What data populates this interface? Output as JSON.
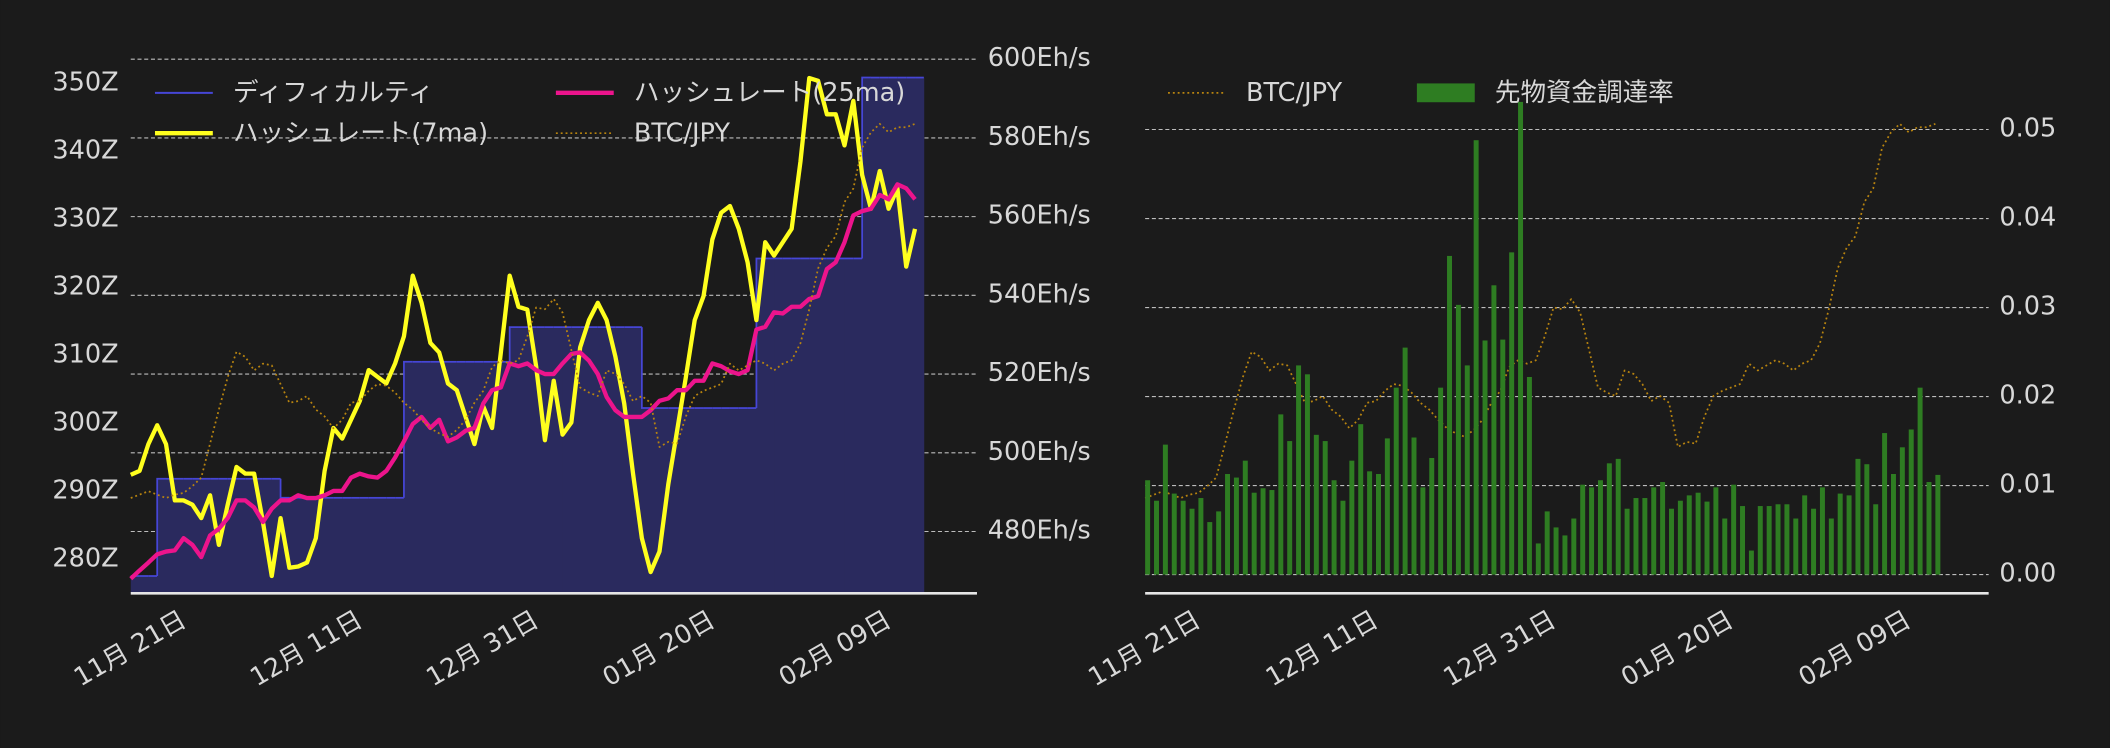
{
  "chart_data": [
    {
      "type": "line",
      "categories": [
        "11月 21日",
        null,
        null,
        null,
        null,
        null,
        null,
        null,
        null,
        null,
        null,
        null,
        null,
        null,
        null,
        null,
        null,
        null,
        null,
        null,
        "12月 11日",
        null,
        null,
        null,
        null,
        null,
        null,
        null,
        null,
        null,
        null,
        null,
        null,
        null,
        null,
        null,
        null,
        null,
        null,
        null,
        "12月 31日",
        null,
        null,
        null,
        null,
        null,
        null,
        null,
        null,
        null,
        null,
        null,
        null,
        null,
        null,
        null,
        null,
        null,
        null,
        null,
        "01月 20日",
        null,
        null,
        null,
        null,
        null,
        null,
        null,
        null,
        null,
        null,
        null,
        null,
        null,
        null,
        null,
        null,
        null,
        null,
        null,
        "02月 09日",
        null,
        null,
        null,
        null,
        null,
        null,
        null,
        null,
        null
      ],
      "ylim": [
        275.06,
        353.6
      ],
      "yticks": [
        {
          "value": 280,
          "label": "280Z"
        },
        {
          "value": 290,
          "label": "290Z"
        },
        {
          "value": 300,
          "label": "300Z"
        },
        {
          "value": 310,
          "label": "310Z"
        },
        {
          "value": 320,
          "label": "320Z"
        },
        {
          "value": 330,
          "label": "330Z"
        },
        {
          "value": 340,
          "label": "340Z"
        },
        {
          "value": 350,
          "label": "350Z"
        }
      ],
      "y2lim": [
        464.3,
        600
      ],
      "y2ticks": [
        {
          "value": 480,
          "label": "480Eh/s"
        },
        {
          "value": 500,
          "label": "500Eh/s"
        },
        {
          "value": 520,
          "label": "520Eh/s"
        },
        {
          "value": 540,
          "label": "540Eh/s"
        },
        {
          "value": 560,
          "label": "560Eh/s"
        },
        {
          "value": 580,
          "label": "580Eh/s"
        },
        {
          "value": 600,
          "label": "600Eh/s"
        }
      ],
      "y3lim": [
        4940000,
        8080000
      ],
      "grid": "y2",
      "legend": {
        "loc": "upper left",
        "ncol": 2
      },
      "series": [
        {
          "name": "ディフィカルティ",
          "style": "step-area",
          "color": "#4646d6",
          "fill": "#2a2a5e",
          "axis": "y",
          "values": [
            277.6,
            277.6,
            277.6,
            291.9,
            291.9,
            291.9,
            291.9,
            291.9,
            291.9,
            291.9,
            291.9,
            291.9,
            291.9,
            291.9,
            291.9,
            291.9,
            291.9,
            289.1,
            289.1,
            289.1,
            289.1,
            289.1,
            289.1,
            289.1,
            289.1,
            289.1,
            289.1,
            289.1,
            289.1,
            289.1,
            289.1,
            309.1,
            309.1,
            309.1,
            309.1,
            309.1,
            309.1,
            309.1,
            309.1,
            309.1,
            309.1,
            309.1,
            309.1,
            314.2,
            314.2,
            314.2,
            314.2,
            314.2,
            314.2,
            314.2,
            314.2,
            314.2,
            314.2,
            314.2,
            314.2,
            314.2,
            314.2,
            314.2,
            302.3,
            302.3,
            302.3,
            302.3,
            302.3,
            302.3,
            302.3,
            302.3,
            302.3,
            302.3,
            302.3,
            302.3,
            302.3,
            324.3,
            324.3,
            324.3,
            324.3,
            324.3,
            324.3,
            324.3,
            324.3,
            324.3,
            324.3,
            324.3,
            324.3,
            350.9,
            350.9,
            350.9,
            350.9,
            350.9,
            350.9,
            350.9
          ]
        },
        {
          "name": "ハッシュレート(7ma)",
          "color": "#ffff1e",
          "axis": "y2",
          "values": [
            494.4,
            495.4,
            502.2,
            507.0,
            502.2,
            487.9,
            487.9,
            486.8,
            483.4,
            489.2,
            476.6,
            486.8,
            496.4,
            494.7,
            494.7,
            482.4,
            468.7,
            483.4,
            470.8,
            471.1,
            472.1,
            478.3,
            495.4,
            506.3,
            503.6,
            508.4,
            513.2,
            521.0,
            519.3,
            517.6,
            522.7,
            529.6,
            545.0,
            538.1,
            527.9,
            525.5,
            517.6,
            515.9,
            509.1,
            502.2,
            511.8,
            506.3,
            525.5,
            545.0,
            537.1,
            536.4,
            522.0,
            503.2,
            518.3,
            504.6,
            507.7,
            526.8,
            533.7,
            538.1,
            533.7,
            524.4,
            512.5,
            494.7,
            478.3,
            469.7,
            474.9,
            492.0,
            505.6,
            519.3,
            533.7,
            539.8,
            554.2,
            561.0,
            562.7,
            556.9,
            548.4,
            533.7,
            553.5,
            550.1,
            553.5,
            556.9,
            574.0,
            595.2,
            594.5,
            586.0,
            586.0,
            578.1,
            589.4,
            570.6,
            562.0,
            571.6,
            562.0,
            567.2,
            547.3,
            556.9
          ]
        },
        {
          "name": "ハッシュレート(25ma)",
          "color": "#ec148c",
          "axis": "y2",
          "values": [
            468.0,
            470.1,
            472.1,
            474.2,
            474.9,
            475.2,
            478.3,
            476.6,
            473.5,
            479.0,
            480.7,
            483.4,
            487.9,
            487.9,
            486.1,
            482.4,
            485.8,
            487.9,
            487.9,
            489.2,
            488.5,
            488.5,
            489.2,
            490.3,
            490.3,
            493.7,
            494.7,
            494.0,
            493.7,
            495.4,
            498.8,
            502.9,
            507.3,
            509.1,
            506.3,
            508.4,
            502.9,
            503.9,
            505.6,
            506.3,
            512.5,
            515.9,
            516.6,
            522.7,
            522.0,
            522.7,
            521.0,
            520.0,
            520.0,
            522.7,
            525.1,
            525.5,
            523.4,
            520.0,
            514.2,
            510.8,
            509.1,
            509.1,
            509.1,
            510.8,
            513.2,
            513.8,
            515.9,
            515.9,
            518.3,
            518.3,
            522.7,
            522.0,
            520.7,
            520.0,
            521.0,
            531.3,
            532.0,
            535.7,
            535.4,
            537.1,
            537.1,
            539.1,
            539.8,
            546.7,
            548.4,
            553.5,
            560.3,
            561.4,
            562.0,
            565.5,
            564.4,
            568.2,
            567.2,
            564.4
          ]
        },
        {
          "name": "BTC/JPY",
          "style": "dotted",
          "color": "#b8840f",
          "axis": "y3",
          "values": [
            5500000,
            5520000,
            5540000,
            5520000,
            5500000,
            5520000,
            5530000,
            5570000,
            5620000,
            5820000,
            6020000,
            6210000,
            6360000,
            6330000,
            6250000,
            6290000,
            6280000,
            6170000,
            6060000,
            6070000,
            6100000,
            6020000,
            5980000,
            5910000,
            5960000,
            6060000,
            6070000,
            6130000,
            6170000,
            6160000,
            6120000,
            6060000,
            6020000,
            5960000,
            5910000,
            5880000,
            5860000,
            5900000,
            5960000,
            6060000,
            6130000,
            6270000,
            6310000,
            6290000,
            6310000,
            6450000,
            6620000,
            6610000,
            6670000,
            6590000,
            6370000,
            6150000,
            6120000,
            6100000,
            6250000,
            6230000,
            6170000,
            6070000,
            6100000,
            6060000,
            5800000,
            5830000,
            5820000,
            5980000,
            6100000,
            6130000,
            6150000,
            6170000,
            6290000,
            6250000,
            6280000,
            6310000,
            6290000,
            6250000,
            6290000,
            6310000,
            6410000,
            6610000,
            6850000,
            6970000,
            7040000,
            7240000,
            7320000,
            7560000,
            7650000,
            7700000,
            7650000,
            7680000,
            7680000,
            7700000
          ]
        }
      ]
    },
    {
      "type": "bar",
      "categories": [
        "11月 21日",
        null,
        null,
        null,
        null,
        null,
        null,
        null,
        null,
        null,
        null,
        null,
        null,
        null,
        null,
        null,
        null,
        null,
        null,
        null,
        "12月 11日",
        null,
        null,
        null,
        null,
        null,
        null,
        null,
        null,
        null,
        null,
        null,
        null,
        null,
        null,
        null,
        null,
        null,
        null,
        null,
        "12月 31日",
        null,
        null,
        null,
        null,
        null,
        null,
        null,
        null,
        null,
        null,
        null,
        null,
        null,
        null,
        null,
        null,
        null,
        null,
        null,
        "01月 20日",
        null,
        null,
        null,
        null,
        null,
        null,
        null,
        null,
        null,
        null,
        null,
        null,
        null,
        null,
        null,
        null,
        null,
        null,
        null,
        "02月 09日",
        null,
        null,
        null,
        null,
        null,
        null,
        null,
        null,
        null
      ],
      "ylim": [
        -0.0021,
        0.0579
      ],
      "yticks": [
        {
          "value": 0,
          "label": "0.00"
        },
        0.01,
        0.02,
        0.03,
        0.04,
        0.05
      ],
      "yaxis_position": "right",
      "y3lim": [
        4940000,
        8080000
      ],
      "grid": "y",
      "legend": {
        "loc": "upper left",
        "ncol": 2
      },
      "series": [
        {
          "name": "BTC/JPY",
          "style": "dotted",
          "color": "#b8840f",
          "axis": "y3",
          "values": [
            5500000,
            5520000,
            5540000,
            5520000,
            5500000,
            5520000,
            5530000,
            5570000,
            5620000,
            5820000,
            6020000,
            6210000,
            6360000,
            6330000,
            6250000,
            6290000,
            6280000,
            6170000,
            6060000,
            6070000,
            6100000,
            6020000,
            5980000,
            5910000,
            5960000,
            6060000,
            6070000,
            6130000,
            6170000,
            6160000,
            6120000,
            6060000,
            6020000,
            5960000,
            5910000,
            5880000,
            5860000,
            5900000,
            5960000,
            6060000,
            6130000,
            6270000,
            6310000,
            6290000,
            6310000,
            6450000,
            6620000,
            6610000,
            6670000,
            6590000,
            6370000,
            6150000,
            6120000,
            6100000,
            6250000,
            6230000,
            6170000,
            6070000,
            6100000,
            6060000,
            5800000,
            5830000,
            5820000,
            5980000,
            6100000,
            6130000,
            6150000,
            6170000,
            6290000,
            6250000,
            6280000,
            6310000,
            6290000,
            6250000,
            6290000,
            6310000,
            6410000,
            6610000,
            6850000,
            6970000,
            7040000,
            7240000,
            7320000,
            7560000,
            7650000,
            7700000,
            7650000,
            7680000,
            7680000,
            7700000
          ]
        },
        {
          "name": "先物資金調達率",
          "color": "#2e7d22",
          "axis": "y",
          "values": [
            0.0106,
            0.0083,
            0.0146,
            0.0091,
            0.0083,
            0.0074,
            0.0086,
            0.0059,
            0.0071,
            0.0113,
            0.0109,
            0.0128,
            0.0092,
            0.0097,
            0.0095,
            0.018,
            0.015,
            0.0235,
            0.0225,
            0.0157,
            0.015,
            0.0106,
            0.0083,
            0.0128,
            0.0169,
            0.0116,
            0.0113,
            0.0153,
            0.021,
            0.0255,
            0.0154,
            0.0098,
            0.0131,
            0.021,
            0.0358,
            0.0303,
            0.0235,
            0.0488,
            0.0263,
            0.0325,
            0.0264,
            0.0362,
            0.0531,
            0.0222,
            0.0035,
            0.0071,
            0.0053,
            0.0044,
            0.0063,
            0.0101,
            0.0098,
            0.0106,
            0.0125,
            0.013,
            0.0074,
            0.0086,
            0.0086,
            0.0098,
            0.0104,
            0.0074,
            0.0083,
            0.0089,
            0.0092,
            0.0082,
            0.0098,
            0.0063,
            0.0101,
            0.0077,
            0.0027,
            0.0077,
            0.0077,
            0.0079,
            0.0079,
            0.0063,
            0.0089,
            0.0074,
            0.0098,
            0.0063,
            0.0091,
            0.0089,
            0.013,
            0.0124,
            0.0079,
            0.0159,
            0.0113,
            0.0143,
            0.0163,
            0.021,
            0.0104,
            0.0112
          ]
        }
      ]
    }
  ]
}
